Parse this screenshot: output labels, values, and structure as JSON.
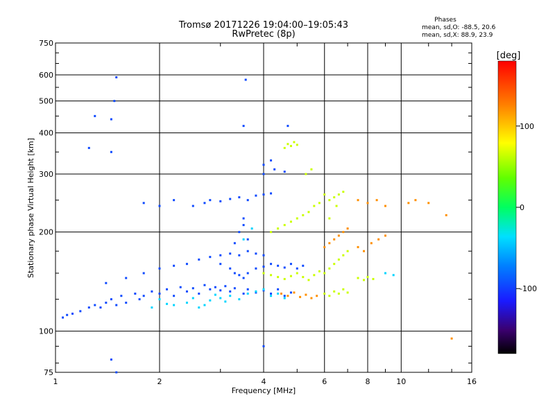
{
  "chart_data": {
    "type": "scatter",
    "title": "Tromsø 20171226 19:04:00–19:05:43",
    "subtitle": "RwPretec (8p)",
    "xlabel": "Frequency [MHz]",
    "ylabel": "Stationary phase Virtual Height [km]",
    "x_scale": "log",
    "y_scale": "log",
    "xlim": [
      1,
      16
    ],
    "ylim": [
      75,
      750
    ],
    "x_ticks": [
      1,
      2,
      4,
      6,
      8,
      10,
      16
    ],
    "y_ticks": [
      75,
      100,
      200,
      300,
      400,
      500,
      600,
      750
    ],
    "grid": true,
    "stats": {
      "title": "Phases",
      "line_o": "mean, sd,O: -88.5, 20.6",
      "line_x": "mean, sd,X:  88.9, 23.9"
    },
    "colorbar": {
      "label": "[deg]",
      "range": [
        -180,
        180
      ],
      "ticks": [
        -100,
        0,
        100
      ]
    },
    "series": [
      {
        "color_value": -95,
        "points": [
          [
            1.05,
            110
          ],
          [
            1.08,
            112
          ],
          [
            1.12,
            113
          ],
          [
            1.18,
            115
          ],
          [
            1.25,
            118
          ],
          [
            1.3,
            120
          ],
          [
            1.35,
            118
          ],
          [
            1.4,
            122
          ],
          [
            1.45,
            125
          ],
          [
            1.5,
            120
          ],
          [
            1.55,
            128
          ],
          [
            1.6,
            122
          ],
          [
            1.7,
            130
          ],
          [
            1.75,
            125
          ],
          [
            1.8,
            128
          ],
          [
            1.9,
            132
          ],
          [
            2.0,
            130
          ],
          [
            2.1,
            134
          ],
          [
            2.2,
            128
          ],
          [
            2.3,
            136
          ],
          [
            2.4,
            132
          ],
          [
            2.5,
            135
          ],
          [
            2.6,
            130
          ],
          [
            2.7,
            138
          ],
          [
            2.8,
            134
          ],
          [
            2.9,
            136
          ],
          [
            3.0,
            133
          ],
          [
            3.1,
            137
          ],
          [
            3.2,
            132
          ],
          [
            3.3,
            135
          ],
          [
            3.5,
            130
          ],
          [
            3.6,
            134
          ],
          [
            3.8,
            131
          ],
          [
            4.0,
            133
          ],
          [
            4.2,
            130
          ],
          [
            4.4,
            134
          ],
          [
            4.6,
            128
          ],
          [
            4.8,
            131
          ],
          [
            1.4,
            140
          ],
          [
            1.6,
            145
          ],
          [
            1.8,
            150
          ],
          [
            2.0,
            155
          ],
          [
            2.2,
            158
          ],
          [
            2.4,
            160
          ],
          [
            2.6,
            165
          ],
          [
            2.8,
            168
          ],
          [
            3.0,
            170
          ],
          [
            3.2,
            172
          ],
          [
            3.4,
            170
          ],
          [
            3.6,
            175
          ],
          [
            3.8,
            172
          ],
          [
            4.0,
            170
          ],
          [
            3.0,
            160
          ],
          [
            3.2,
            155
          ],
          [
            3.3,
            150
          ],
          [
            3.4,
            148
          ],
          [
            3.5,
            145
          ],
          [
            3.6,
            150
          ],
          [
            3.8,
            155
          ],
          [
            4.0,
            157
          ],
          [
            4.2,
            160
          ],
          [
            4.4,
            158
          ],
          [
            4.6,
            156
          ],
          [
            4.8,
            160
          ],
          [
            5.0,
            155
          ],
          [
            5.2,
            158
          ],
          [
            3.3,
            185
          ],
          [
            3.4,
            200
          ],
          [
            3.5,
            210
          ],
          [
            3.6,
            190
          ],
          [
            3.5,
            220
          ],
          [
            2.5,
            240
          ],
          [
            2.7,
            245
          ],
          [
            2.8,
            250
          ],
          [
            3.0,
            248
          ],
          [
            3.2,
            252
          ],
          [
            3.4,
            255
          ],
          [
            3.6,
            250
          ],
          [
            3.8,
            258
          ],
          [
            4.0,
            260
          ],
          [
            4.2,
            262
          ],
          [
            1.8,
            245
          ],
          [
            2.0,
            240
          ],
          [
            2.2,
            250
          ],
          [
            4.0,
            300
          ],
          [
            4.3,
            310
          ],
          [
            4.6,
            305
          ],
          [
            4.2,
            330
          ],
          [
            4.0,
            320
          ],
          [
            1.45,
            440
          ],
          [
            1.48,
            500
          ],
          [
            1.5,
            590
          ],
          [
            1.45,
            350
          ],
          [
            1.25,
            360
          ],
          [
            1.3,
            450
          ],
          [
            3.55,
            580
          ],
          [
            3.5,
            420
          ],
          [
            4.7,
            420
          ],
          [
            1.45,
            82
          ],
          [
            1.5,
            75
          ],
          [
            4.0,
            90
          ]
        ]
      },
      {
        "color_value": -40,
        "points": [
          [
            2.2,
            120
          ],
          [
            2.4,
            122
          ],
          [
            2.6,
            118
          ],
          [
            2.8,
            124
          ],
          [
            3.0,
            126
          ],
          [
            3.2,
            128
          ],
          [
            3.4,
            125
          ],
          [
            3.6,
            130
          ],
          [
            3.8,
            132
          ],
          [
            4.0,
            134
          ],
          [
            4.2,
            128
          ],
          [
            4.4,
            130
          ],
          [
            4.6,
            126
          ],
          [
            2.0,
            125
          ],
          [
            1.9,
            118
          ],
          [
            2.1,
            121
          ],
          [
            2.5,
            126
          ],
          [
            2.7,
            120
          ],
          [
            2.9,
            129
          ],
          [
            3.1,
            123
          ],
          [
            9.0,
            150
          ],
          [
            9.5,
            148
          ],
          [
            3.5,
            190
          ],
          [
            3.7,
            205
          ]
        ]
      },
      {
        "color_value": 65,
        "points": [
          [
            4.0,
            150
          ],
          [
            4.2,
            148
          ],
          [
            4.4,
            146
          ],
          [
            4.6,
            144
          ],
          [
            4.8,
            147
          ],
          [
            5.0,
            150
          ],
          [
            5.2,
            146
          ],
          [
            5.4,
            143
          ],
          [
            5.6,
            148
          ],
          [
            5.8,
            152
          ],
          [
            6.0,
            150
          ],
          [
            6.2,
            155
          ],
          [
            6.4,
            160
          ],
          [
            6.6,
            165
          ],
          [
            6.8,
            170
          ],
          [
            7.0,
            175
          ],
          [
            4.2,
            200
          ],
          [
            4.4,
            205
          ],
          [
            4.6,
            210
          ],
          [
            4.8,
            215
          ],
          [
            5.0,
            220
          ],
          [
            5.2,
            225
          ],
          [
            5.4,
            230
          ],
          [
            5.6,
            240
          ],
          [
            5.8,
            245
          ],
          [
            6.2,
            250
          ],
          [
            6.4,
            255
          ],
          [
            6.6,
            260
          ],
          [
            6.8,
            265
          ],
          [
            6.0,
            130
          ],
          [
            6.2,
            128
          ],
          [
            6.4,
            132
          ],
          [
            6.6,
            130
          ],
          [
            6.8,
            134
          ],
          [
            7.0,
            131
          ],
          [
            7.5,
            145
          ],
          [
            7.8,
            143
          ],
          [
            8.0,
            146
          ],
          [
            8.3,
            144
          ],
          [
            4.6,
            360
          ],
          [
            4.7,
            370
          ],
          [
            4.8,
            365
          ],
          [
            4.9,
            375
          ],
          [
            5.0,
            368
          ],
          [
            5.3,
            300
          ],
          [
            5.5,
            310
          ],
          [
            6.0,
            260
          ],
          [
            6.5,
            240
          ],
          [
            6.2,
            220
          ]
        ]
      },
      {
        "color_value": 120,
        "points": [
          [
            4.5,
            130
          ],
          [
            4.7,
            128
          ],
          [
            4.9,
            131
          ],
          [
            5.1,
            127
          ],
          [
            5.3,
            129
          ],
          [
            5.5,
            126
          ],
          [
            5.7,
            128
          ],
          [
            6.0,
            180
          ],
          [
            6.2,
            185
          ],
          [
            6.4,
            190
          ],
          [
            6.6,
            195
          ],
          [
            6.8,
            200
          ],
          [
            7.0,
            205
          ],
          [
            7.5,
            180
          ],
          [
            7.8,
            175
          ],
          [
            8.2,
            185
          ],
          [
            8.6,
            190
          ],
          [
            9.0,
            195
          ],
          [
            7.5,
            250
          ],
          [
            8.0,
            245
          ],
          [
            8.5,
            250
          ],
          [
            9.0,
            240
          ],
          [
            10.5,
            245
          ],
          [
            11.0,
            250
          ],
          [
            12.0,
            245
          ],
          [
            14.0,
            95
          ],
          [
            13.5,
            225
          ]
        ]
      }
    ]
  }
}
